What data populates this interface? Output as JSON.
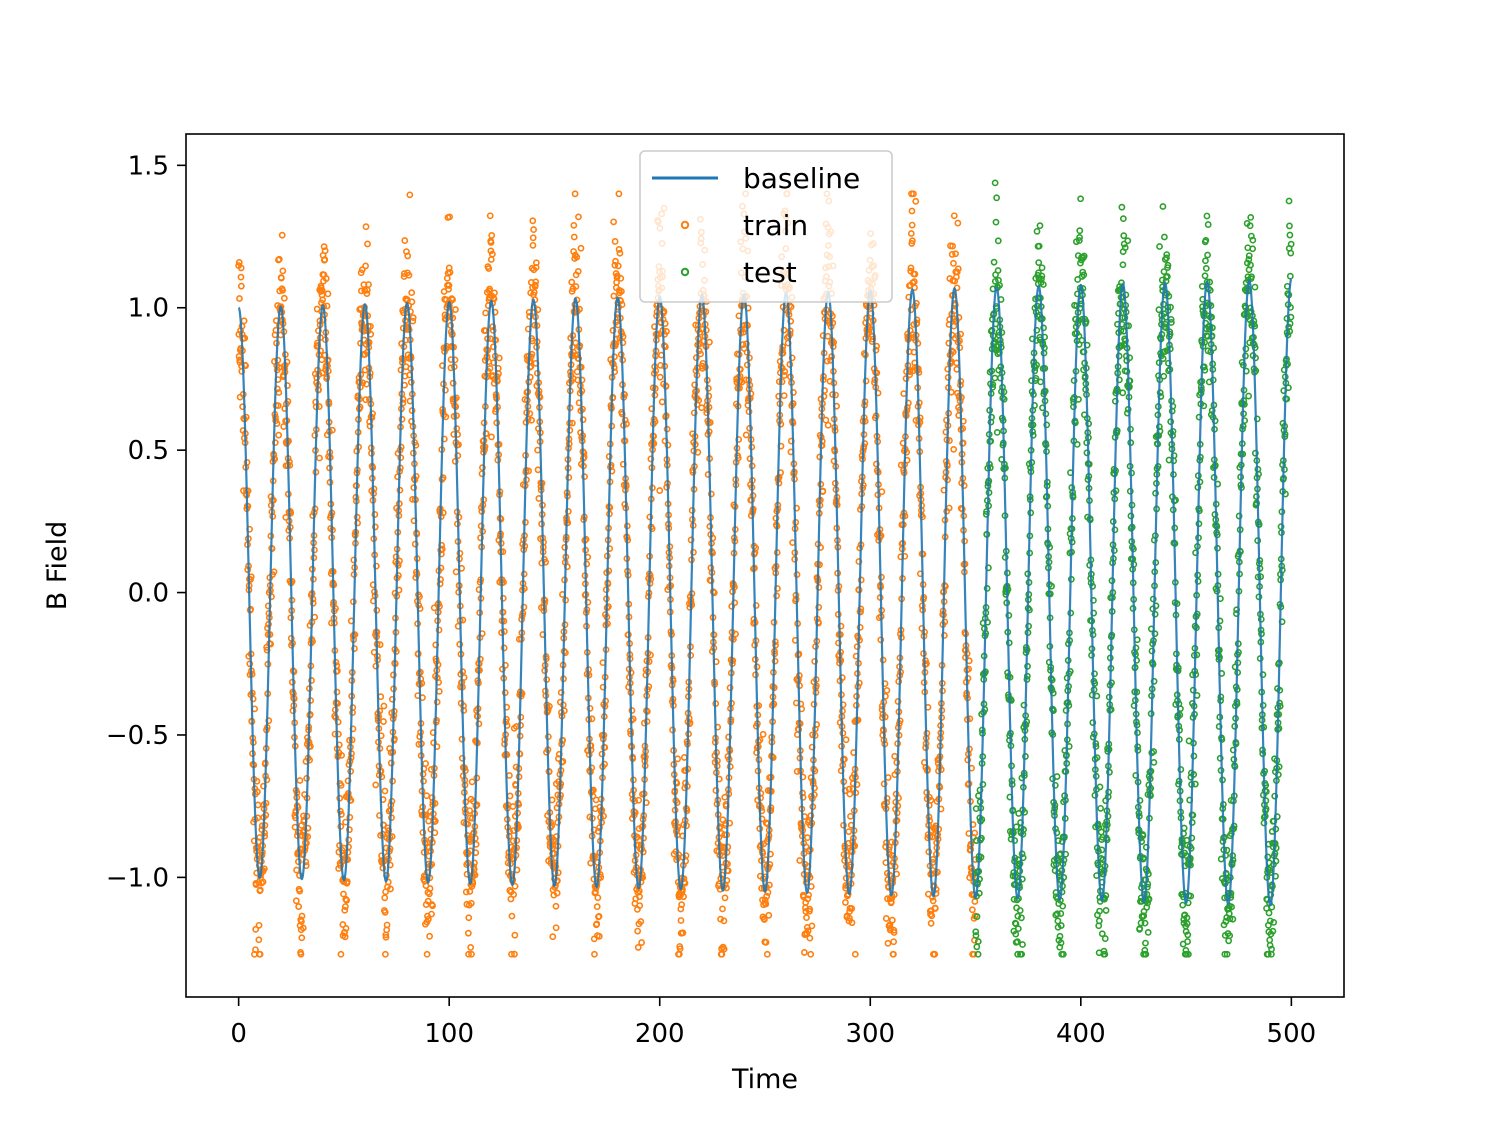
{
  "chart_data": {
    "type": "scatter",
    "title": "",
    "xlabel": "Time",
    "ylabel": "B Field",
    "xlim": [
      -25,
      525
    ],
    "ylim": [
      -1.42,
      1.61
    ],
    "xticks": [
      0,
      100,
      200,
      300,
      400,
      500
    ],
    "xtick_labels": [
      "0",
      "100",
      "200",
      "300",
      "400",
      "500"
    ],
    "yticks": [
      -1.0,
      -0.5,
      0.0,
      0.5,
      1.0,
      1.5
    ],
    "ytick_labels": [
      "−1.0",
      "−0.5",
      "0.0",
      "0.5",
      "1.0",
      "1.5"
    ],
    "grid": false,
    "legend_position": "upper center",
    "baseline_model": {
      "form": "sin",
      "frequency_per_time": 0.05,
      "phase_at_t0": 1.5708,
      "amplitude_start": 1.0,
      "amplitude_growth_per_time": 0.0002
    },
    "series": [
      {
        "name": "baseline",
        "kind": "line",
        "color": "#1f77b4",
        "x_range": [
          0,
          500
        ],
        "note_values": "sinusoid, period 20, amplitude ~1.0 growing to ~1.1"
      },
      {
        "name": "train",
        "kind": "scatter",
        "marker": "hollow-circle",
        "color": "#ff7f0e",
        "x_range": [
          0,
          350
        ],
        "noise_std": 0.15,
        "y_min_observed": -1.27,
        "y_max_observed": 1.4
      },
      {
        "name": "test",
        "kind": "scatter",
        "marker": "hollow-circle",
        "color": "#2ca02c",
        "x_range": [
          350,
          500
        ],
        "noise_std": 0.15,
        "y_min_observed": -1.27,
        "y_max_observed": 1.47
      }
    ]
  }
}
